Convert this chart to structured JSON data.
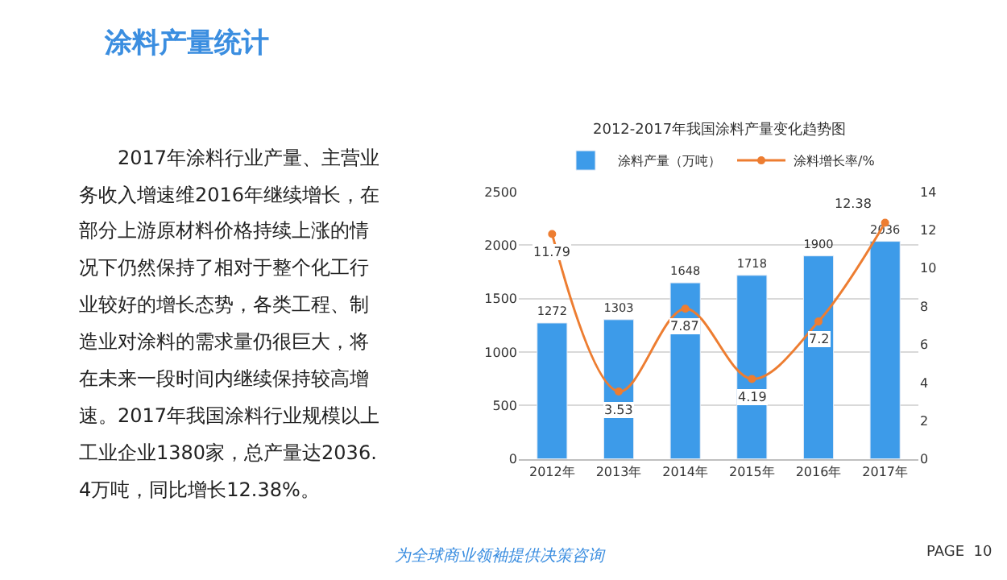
{
  "chart_data": [
    {
      "type": "other",
      "title": "涂料产量统计",
      "annotations": [
        "　　2017年涂料行业产量、主营业务收入增速维2016年继续增长，在部分上游原材料价格持续上涨的情况下仍然保持了相对于整个化工行业较好的增长态势，各类工程、制造业对涂料的需求量仍很巨大，将在未来一段时间内继续保持较高增速。2017年我国涂料行业规模以上工业企业1380家，总产量达2036.4万吨，同比增长12.38%。",
        "为全球商业领袖提供决策咨询",
        "PAGE  10"
      ]
    },
    {
      "type": "bar",
      "title": "2012-2017年我国涂料产量变化趋势图",
      "categories": [
        "2012年",
        "2013年",
        "2014年",
        "2015年",
        "2016年",
        "2017年"
      ],
      "series": [
        {
          "name": "涂料产量（万吨）",
          "type": "bar",
          "color": "#3d9be9",
          "values": [
            1272,
            1303,
            1648,
            1718,
            1900,
            2036
          ]
        },
        {
          "name": "涂料增长率/%",
          "type": "line",
          "axis": "y2",
          "color": "#ed7d31",
          "values": [
            11.79,
            3.53,
            7.87,
            4.19,
            7.2,
            12.38
          ]
        }
      ],
      "ylim": [
        0,
        2500
      ],
      "yticks": [
        0,
        500,
        1000,
        1500,
        2000,
        2500
      ],
      "y2lim": [
        0,
        14
      ],
      "y2ticks": [
        0,
        2,
        4,
        6,
        8,
        10,
        12,
        14
      ],
      "grid": "y",
      "legend": "top",
      "marker": "circle",
      "data_labels": true
    }
  ]
}
